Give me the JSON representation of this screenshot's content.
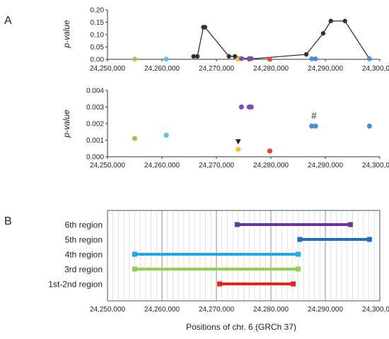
{
  "panel_labels": {
    "a": "A",
    "b": "B"
  },
  "chart_data": [
    {
      "type": "line",
      "panel": "A",
      "ylabel": "p-value",
      "xlim": [
        24250000,
        24300000
      ],
      "ylim": [
        0,
        0.2
      ],
      "x_ticks": [
        24250000,
        24260000,
        24270000,
        24280000,
        24290000,
        24300000
      ],
      "x_tick_labels": [
        "24,250,000",
        "24,260,000",
        "24,270,000",
        "24,280,000",
        "24,290,000",
        "24,300,000"
      ],
      "y_ticks": [
        0,
        0.05,
        0.1,
        0.15,
        0.2
      ],
      "y_tick_labels": [
        "0.00",
        "0.05",
        "0.10",
        "0.15",
        "0.20"
      ],
      "series": [
        {
          "color": "#333333",
          "x": [
            24265800,
            24266500,
            24267600,
            24267900,
            24272300,
            24273400,
            24276000,
            24286500,
            24289600,
            24291000,
            24293600,
            24298100
          ],
          "y": [
            0.012,
            0.012,
            0.13,
            0.13,
            0.012,
            0.012,
            0.001,
            0.02,
            0.105,
            0.155,
            0.155,
            0.002
          ]
        }
      ],
      "colored_points": [
        {
          "x": 24255000,
          "y": 0.001,
          "color": "#92d050"
        },
        {
          "x": 24260800,
          "y": 0.001,
          "color": "#5bc0eb"
        },
        {
          "x": 24274000,
          "y": 0.0005,
          "color": "#f4c430"
        },
        {
          "x": 24274600,
          "y": 0.003,
          "color": "#7f4fb0"
        },
        {
          "x": 24276000,
          "y": 0.003,
          "color": "#7f4fb0"
        },
        {
          "x": 24276400,
          "y": 0.003,
          "color": "#7f4fb0"
        },
        {
          "x": 24279800,
          "y": 0.0004,
          "color": "#e8433a"
        },
        {
          "x": 24287500,
          "y": 0.002,
          "color": "#4a90d9"
        },
        {
          "x": 24288200,
          "y": 0.002,
          "color": "#4a90d9"
        },
        {
          "x": 24298100,
          "y": 0.002,
          "color": "#4a90d9"
        }
      ]
    },
    {
      "type": "scatter",
      "panel": "A",
      "ylabel": "p-value",
      "xlim": [
        24250000,
        24300000
      ],
      "ylim": [
        0,
        0.004
      ],
      "x_ticks": [
        24250000,
        24260000,
        24270000,
        24280000,
        24290000,
        24300000
      ],
      "x_tick_labels": [
        "24,250,000",
        "24,260,000",
        "24,270,000",
        "24,280,000",
        "24,290,000",
        "24,300,000"
      ],
      "y_ticks": [
        0,
        0.001,
        0.002,
        0.003,
        0.004
      ],
      "y_tick_labels": [
        "0.000",
        "0.001",
        "0.002",
        "0.003",
        "0.004"
      ],
      "points": [
        {
          "x": 24255000,
          "y": 0.0011,
          "color": "#92d050"
        },
        {
          "x": 24260800,
          "y": 0.0013,
          "color": "#5bc0eb"
        },
        {
          "x": 24274000,
          "y": 0.00045,
          "color": "#f4c430"
        },
        {
          "x": 24274600,
          "y": 0.003,
          "color": "#7f4fb0"
        },
        {
          "x": 24276000,
          "y": 0.003,
          "color": "#7f4fb0"
        },
        {
          "x": 24276400,
          "y": 0.003,
          "color": "#7f4fb0"
        },
        {
          "x": 24279800,
          "y": 0.00035,
          "color": "#e8433a"
        },
        {
          "x": 24287500,
          "y": 0.00185,
          "color": "#4a90d9"
        },
        {
          "x": 24288200,
          "y": 0.00185,
          "color": "#4a90d9"
        },
        {
          "x": 24298100,
          "y": 0.00185,
          "color": "#4a90d9"
        }
      ],
      "annotations": [
        {
          "text": "▼",
          "x": 24274000,
          "y": 0.00075
        },
        {
          "text": "#",
          "x": 24287900,
          "y": 0.0023
        }
      ]
    },
    {
      "type": "bar",
      "panel": "B",
      "xlabel": "Positions of chr. 6 (GRCh 37)",
      "xlim": [
        24250000,
        24300000
      ],
      "x_ticks": [
        24250000,
        24260000,
        24270000,
        24280000,
        24290000,
        24300000
      ],
      "x_tick_labels": [
        "24,250,000",
        "24,260,000",
        "24,270,000",
        "24,280,000",
        "24,290,000",
        "24,300,000"
      ],
      "grid_step": 1000,
      "regions": [
        {
          "label": "6th region",
          "start": 24273800,
          "end": 24294600,
          "color": "#7030a0"
        },
        {
          "label": "5th region",
          "start": 24285300,
          "end": 24298100,
          "color": "#1f6fbf"
        },
        {
          "label": "4th region",
          "start": 24255000,
          "end": 24285000,
          "color": "#21a8e8"
        },
        {
          "label": "3rd region",
          "start": 24255000,
          "end": 24285000,
          "color": "#92d050"
        },
        {
          "label": "1st-2nd region",
          "start": 24270600,
          "end": 24284100,
          "color": "#e8231a"
        }
      ]
    }
  ]
}
